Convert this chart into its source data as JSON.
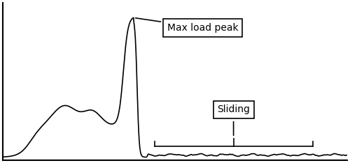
{
  "title": "",
  "background_color": "#ffffff",
  "line_color": "#000000",
  "annotation_max_load": "Max load peak",
  "annotation_sliding": "Sliding",
  "xlim": [
    0,
    100
  ],
  "ylim": [
    -2,
    105
  ],
  "figsize": [
    5.0,
    2.34
  ],
  "dpi": 100
}
